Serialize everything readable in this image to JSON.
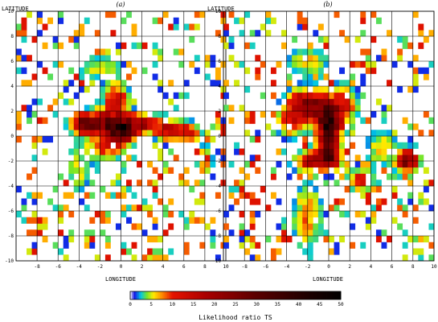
{
  "chart_data": [
    {
      "type": "heatmap",
      "panel_label": "(a)",
      "xlabel": "LONGITUDE",
      "ylabel": "LATITUDE",
      "xlim": [
        -10,
        10
      ],
      "ylim": [
        -10,
        10
      ],
      "x_ticks": [
        -8,
        -6,
        -4,
        -2,
        0,
        2,
        4,
        6,
        8,
        10
      ],
      "y_ticks": [
        -10,
        -8,
        -6,
        -4,
        -2,
        0,
        2,
        4,
        6,
        8,
        10
      ],
      "grid": true,
      "peak": [
        0,
        0.5
      ],
      "approx_max_ts": 45
    },
    {
      "type": "heatmap",
      "panel_label": "(b)",
      "xlabel": "LONGITUDE",
      "ylabel": "LATITUDE",
      "xlim": [
        -10,
        10
      ],
      "ylim": [
        -10,
        10
      ],
      "x_ticks": [
        -8,
        -6,
        -4,
        -2,
        0,
        2,
        4,
        6,
        8,
        10
      ],
      "y_ticks": [
        -10,
        -8,
        -6,
        -4,
        -2,
        0,
        2,
        4,
        6,
        8,
        10
      ],
      "grid": true,
      "peak": [
        0,
        1
      ],
      "approx_max_ts": 45
    }
  ],
  "colorbar": {
    "title": "Likelihood ratio TS",
    "ticks": [
      "0",
      "5",
      "10",
      "15",
      "20",
      "25",
      "30",
      "35",
      "40",
      "45",
      "50"
    ],
    "range": [
      0,
      50
    ]
  }
}
